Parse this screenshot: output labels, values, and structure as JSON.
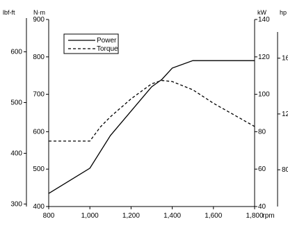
{
  "chart_data": {
    "type": "line",
    "title": "",
    "xlabel": "rpm",
    "x": [
      800,
      1000,
      1100,
      1200,
      1300,
      1350,
      1400,
      1500,
      1600,
      1700,
      1800
    ],
    "xlim": [
      800,
      1800
    ],
    "x_ticks": [
      800,
      1000,
      1200,
      1400,
      1600,
      1800
    ],
    "x_tick_labels": [
      "800",
      "1,000",
      "1,200",
      "1,400",
      "1,600",
      "1,800"
    ],
    "axes": {
      "lbf_ft": {
        "label": "lbf-ft",
        "ticks": [
          "300",
          "400",
          "500",
          "600"
        ]
      },
      "nm": {
        "label": "N·m",
        "range": [
          400,
          900
        ],
        "ticks": [
          "400",
          "500",
          "600",
          "700",
          "800",
          "900"
        ]
      },
      "kw": {
        "label": "kW",
        "range": [
          40,
          140
        ],
        "ticks": [
          "40",
          "60",
          "80",
          "100",
          "120",
          "140"
        ]
      },
      "hp": {
        "label": "hp",
        "ticks": [
          "80",
          "12",
          "16"
        ]
      }
    },
    "series": [
      {
        "name": "Power",
        "style": "solid",
        "axis": "kw",
        "x": [
          800,
          1000,
          1100,
          1300,
          1350,
          1400,
          1500,
          1600,
          1700,
          1800
        ],
        "y": [
          47,
          60.5,
          78,
          104,
          108,
          114,
          118,
          118,
          118,
          118
        ]
      },
      {
        "name": "Torque",
        "style": "dashed",
        "axis": "nm",
        "x": [
          800,
          1000,
          1050,
          1100,
          1200,
          1300,
          1350,
          1400,
          1500,
          1600,
          1700,
          1800
        ],
        "y": [
          575,
          575,
          612,
          640,
          688,
          728,
          737,
          734,
          712,
          676,
          645,
          614
        ]
      }
    ],
    "legend": {
      "placement": "top-left",
      "entries": [
        "Power",
        "Torque"
      ]
    },
    "grid": false
  }
}
